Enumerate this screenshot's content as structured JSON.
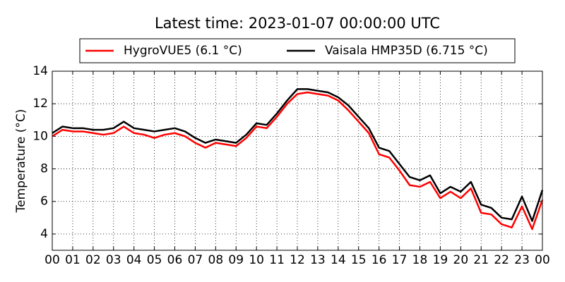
{
  "chart_data": {
    "type": "line",
    "title": "Latest time: 2023-01-07 00:00:00 UTC",
    "ylabel": "Temperature (°C)",
    "x": [
      0,
      0.5,
      1,
      1.5,
      2,
      2.5,
      3,
      3.5,
      4,
      4.5,
      5,
      5.5,
      6,
      6.5,
      7,
      7.5,
      8,
      8.5,
      9,
      9.5,
      10,
      10.5,
      11,
      11.5,
      12,
      12.5,
      13,
      13.5,
      14,
      14.5,
      15,
      15.5,
      16,
      16.5,
      17,
      17.5,
      18,
      18.5,
      19,
      19.5,
      20,
      20.5,
      21,
      21.5,
      22,
      22.5,
      23,
      23.5,
      24
    ],
    "series": [
      {
        "name": "HygroVUE5 (6.1 °C)",
        "color": "#ff0000",
        "values": [
          10.0,
          10.4,
          10.3,
          10.3,
          10.2,
          10.1,
          10.2,
          10.6,
          10.2,
          10.1,
          9.9,
          10.1,
          10.2,
          10.0,
          9.6,
          9.3,
          9.6,
          9.5,
          9.4,
          9.9,
          10.6,
          10.5,
          11.2,
          12.0,
          12.6,
          12.7,
          12.6,
          12.5,
          12.2,
          11.6,
          10.9,
          10.2,
          8.9,
          8.7,
          7.9,
          7.0,
          6.9,
          7.2,
          6.2,
          6.6,
          6.2,
          6.8,
          5.3,
          5.2,
          4.6,
          4.4,
          5.7,
          4.3,
          6.1
        ]
      },
      {
        "name": "Vaisala HMP35D (6.715 °C)",
        "color": "#000000",
        "values": [
          10.2,
          10.6,
          10.5,
          10.5,
          10.4,
          10.4,
          10.5,
          10.9,
          10.5,
          10.4,
          10.3,
          10.4,
          10.5,
          10.3,
          9.9,
          9.6,
          9.8,
          9.7,
          9.6,
          10.1,
          10.8,
          10.7,
          11.4,
          12.2,
          12.9,
          12.9,
          12.8,
          12.7,
          12.4,
          11.9,
          11.2,
          10.5,
          9.3,
          9.1,
          8.3,
          7.5,
          7.3,
          7.6,
          6.5,
          6.9,
          6.6,
          7.2,
          5.8,
          5.6,
          5.0,
          4.9,
          6.3,
          4.8,
          6.7
        ]
      }
    ],
    "xlim": [
      0,
      24
    ],
    "xticks": [
      {
        "value": 0,
        "label": "00"
      },
      {
        "value": 1,
        "label": "01"
      },
      {
        "value": 2,
        "label": "02"
      },
      {
        "value": 3,
        "label": "03"
      },
      {
        "value": 4,
        "label": "04"
      },
      {
        "value": 5,
        "label": "05"
      },
      {
        "value": 6,
        "label": "06"
      },
      {
        "value": 7,
        "label": "07"
      },
      {
        "value": 8,
        "label": "08"
      },
      {
        "value": 9,
        "label": "09"
      },
      {
        "value": 10,
        "label": "10"
      },
      {
        "value": 11,
        "label": "11"
      },
      {
        "value": 12,
        "label": "12"
      },
      {
        "value": 13,
        "label": "13"
      },
      {
        "value": 14,
        "label": "14"
      },
      {
        "value": 15,
        "label": "15"
      },
      {
        "value": 16,
        "label": "16"
      },
      {
        "value": 17,
        "label": "17"
      },
      {
        "value": 18,
        "label": "18"
      },
      {
        "value": 19,
        "label": "19"
      },
      {
        "value": 20,
        "label": "20"
      },
      {
        "value": 21,
        "label": "21"
      },
      {
        "value": 22,
        "label": "22"
      },
      {
        "value": 23,
        "label": "23"
      },
      {
        "value": 24,
        "label": "00"
      }
    ],
    "ylim": [
      3,
      14
    ],
    "yticks": [
      4,
      6,
      8,
      10,
      12,
      14
    ],
    "grid": true,
    "legend": "top"
  }
}
